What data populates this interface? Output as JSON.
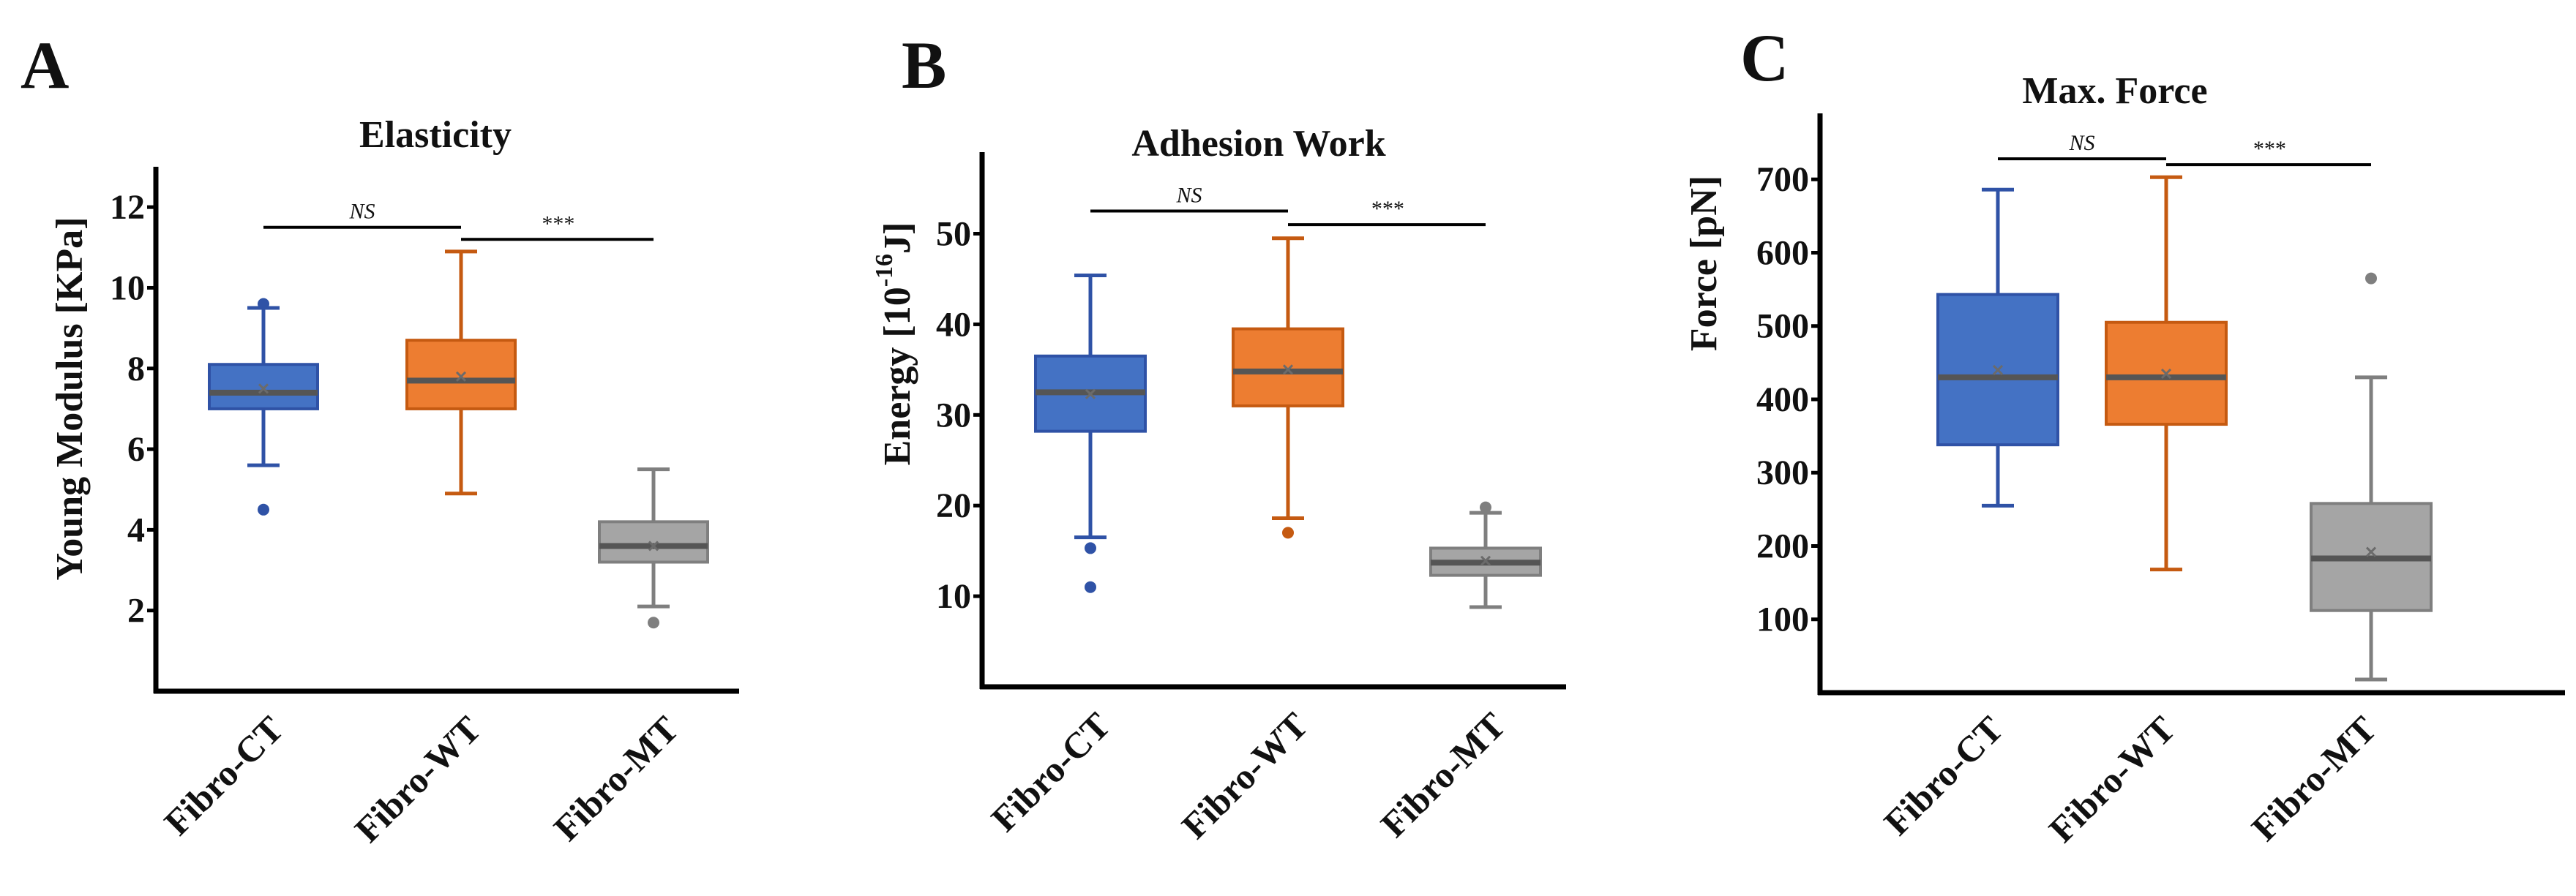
{
  "chart_data": [
    {
      "type": "box",
      "panel": "A",
      "title": "Elasticity",
      "ylabel": "Young Modulus [KPa]",
      "xlabel": "",
      "ylim": [
        0,
        13
      ],
      "yticks": [
        2,
        4,
        6,
        8,
        10,
        12
      ],
      "categories": [
        "Fibro-CT",
        "Fibro-WT",
        "Fibro-MT"
      ],
      "colors": [
        "#4472C4",
        "#ED7D31",
        "#A5A5A5"
      ],
      "edge_colors": [
        "#2F52A6",
        "#C55A11",
        "#7F7F7F"
      ],
      "boxes": [
        {
          "category": "Fibro-CT",
          "whisker_low": 5.6,
          "q1": 7.0,
          "median": 7.4,
          "mean": 7.5,
          "q3": 8.1,
          "whisker_high": 9.5,
          "outliers": [
            9.6,
            4.5
          ]
        },
        {
          "category": "Fibro-WT",
          "whisker_low": 4.9,
          "q1": 7.0,
          "median": 7.7,
          "mean": 7.8,
          "q3": 8.7,
          "whisker_high": 10.9,
          "outliers": []
        },
        {
          "category": "Fibro-MT",
          "whisker_low": 2.1,
          "q1": 3.2,
          "median": 3.6,
          "mean": 3.6,
          "q3": 4.2,
          "whisker_high": 5.5,
          "outliers": [
            1.7
          ]
        }
      ],
      "significance": [
        {
          "from": "Fibro-CT",
          "to": "Fibro-WT",
          "label": "NS",
          "y": 11.5
        },
        {
          "from": "Fibro-WT",
          "to": "Fibro-MT",
          "label": "***",
          "y": 11.2
        }
      ]
    },
    {
      "type": "box",
      "panel": "B",
      "title": "Adhesion Work",
      "ylabel_main": "Energy [10",
      "ylabel_sup": "-16",
      "ylabel_end": "J]",
      "xlabel": "",
      "ylim": [
        0,
        59
      ],
      "yticks": [
        10,
        20,
        30,
        40,
        50
      ],
      "categories": [
        "Fibro-CT",
        "Fibro-WT",
        "Fibro-MT"
      ],
      "colors": [
        "#4472C4",
        "#ED7D31",
        "#A5A5A5"
      ],
      "edge_colors": [
        "#2F52A6",
        "#C55A11",
        "#7F7F7F"
      ],
      "boxes": [
        {
          "category": "Fibro-CT",
          "whisker_low": 16.5,
          "q1": 28.2,
          "median": 32.5,
          "mean": 32.3,
          "q3": 36.5,
          "whisker_high": 45.4,
          "outliers": [
            15.3,
            11.0
          ]
        },
        {
          "category": "Fibro-WT",
          "whisker_low": 18.6,
          "q1": 31.0,
          "median": 34.8,
          "mean": 35.0,
          "q3": 39.5,
          "whisker_high": 49.5,
          "outliers": [
            17.0
          ]
        },
        {
          "category": "Fibro-MT",
          "whisker_low": 8.8,
          "q1": 12.3,
          "median": 13.7,
          "mean": 13.9,
          "q3": 15.3,
          "whisker_high": 19.2,
          "outliers": [
            19.8
          ]
        }
      ],
      "significance": [
        {
          "from": "Fibro-CT",
          "to": "Fibro-WT",
          "label": "NS",
          "y": 52.5
        },
        {
          "from": "Fibro-WT",
          "to": "Fibro-MT",
          "label": "***",
          "y": 51.0
        }
      ]
    },
    {
      "type": "box",
      "panel": "C",
      "title": "Max. Force",
      "ylabel": "Force [pN]",
      "xlabel": "",
      "ylim": [
        0,
        790
      ],
      "yticks": [
        100,
        200,
        300,
        400,
        500,
        600,
        700
      ],
      "categories": [
        "Fibro-CT",
        "Fibro-WT",
        "Fibro-MT"
      ],
      "colors": [
        "#4472C4",
        "#ED7D31",
        "#A5A5A5"
      ],
      "edge_colors": [
        "#2F52A6",
        "#C55A11",
        "#7F7F7F"
      ],
      "boxes": [
        {
          "category": "Fibro-CT",
          "whisker_low": 255,
          "q1": 338,
          "median": 430,
          "mean": 440,
          "q3": 543,
          "whisker_high": 686,
          "outliers": []
        },
        {
          "category": "Fibro-WT",
          "whisker_low": 168,
          "q1": 366,
          "median": 430,
          "mean": 435,
          "q3": 505,
          "whisker_high": 703,
          "outliers": []
        },
        {
          "category": "Fibro-MT",
          "whisker_low": 18,
          "q1": 112,
          "median": 183,
          "mean": 192,
          "q3": 258,
          "whisker_high": 430,
          "outliers": [
            565
          ]
        }
      ],
      "significance": [
        {
          "from": "Fibro-CT",
          "to": "Fibro-WT",
          "label": "NS",
          "y": 728
        },
        {
          "from": "Fibro-WT",
          "to": "Fibro-MT",
          "label": "***",
          "y": 720
        }
      ]
    }
  ]
}
